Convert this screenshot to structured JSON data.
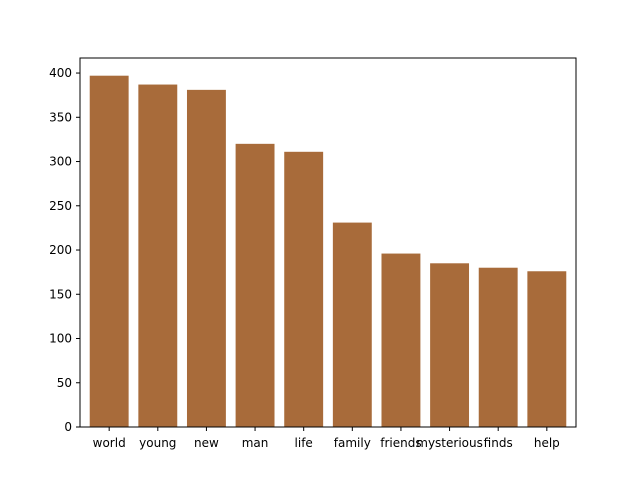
{
  "chart_data": {
    "type": "bar",
    "title": "",
    "xlabel": "",
    "ylabel": "",
    "categories": [
      "world",
      "young",
      "new",
      "man",
      "life",
      "family",
      "friends",
      "mysterious",
      "finds",
      "help"
    ],
    "values": [
      397,
      387,
      381,
      320,
      311,
      231,
      196,
      185,
      180,
      176
    ],
    "ylim": [
      0,
      417
    ],
    "yticks": [
      0,
      50,
      100,
      150,
      200,
      250,
      300,
      350,
      400
    ],
    "grid": false,
    "legend": "none",
    "bar_color": "#a86b3a"
  }
}
